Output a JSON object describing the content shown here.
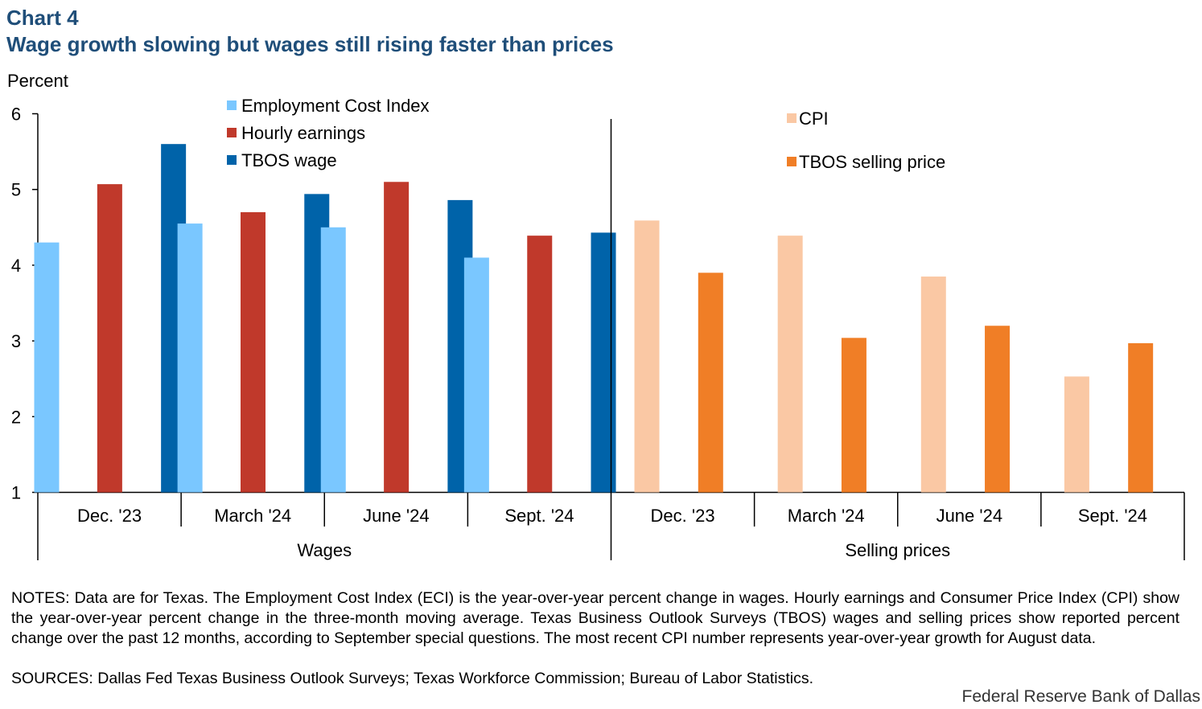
{
  "header": {
    "chart_number": "Chart 4",
    "title": "Wage growth slowing but wages still rising faster than prices"
  },
  "chart_data": {
    "type": "bar",
    "ylabel": "Percent",
    "ylim": [
      1,
      6
    ],
    "yticks": [
      1,
      2,
      3,
      4,
      5,
      6
    ],
    "groups": [
      {
        "name": "Wages",
        "categories": [
          "Dec. '23",
          "March '24",
          "June '24",
          "Sept. '24"
        ],
        "series": [
          {
            "name": "Employment Cost Index",
            "color": "#7ac7ff",
            "values": [
              4.3,
              4.55,
              4.5,
              4.1
            ]
          },
          {
            "name": "Hourly earnings",
            "color": "#c0392b",
            "values": [
              5.07,
              4.7,
              5.1,
              4.39
            ]
          },
          {
            "name": "TBOS wage",
            "color": "#0063a9",
            "values": [
              5.6,
              4.94,
              4.86,
              4.43
            ]
          }
        ]
      },
      {
        "name": "Selling prices",
        "categories": [
          "Dec. '23",
          "March '24",
          "June '24",
          "Sept. '24"
        ],
        "series": [
          {
            "name": "CPI",
            "color": "#fac8a4",
            "values": [
              4.59,
              4.39,
              3.85,
              2.53
            ]
          },
          {
            "name": "TBOS selling price",
            "color": "#f07e26",
            "values": [
              3.9,
              3.04,
              3.2,
              2.97
            ]
          }
        ]
      }
    ],
    "legend": {
      "left": [
        "Employment Cost Index",
        "Hourly earnings",
        "TBOS wage"
      ],
      "right": [
        "CPI",
        "TBOS selling price"
      ]
    }
  },
  "notes": "NOTES: Data are for Texas. The Employment Cost Index (ECI) is the year-over-year percent change in wages. Hourly earnings and Consumer Price Index (CPI) show the year-over-year percent change in the three-month moving average. Texas Business Outlook Surveys (TBOS) wages and selling prices show reported percent change over the past 12 months, according to September special questions. The most recent CPI number represents year-over-year growth for August data.",
  "sources": "SOURCES: Dallas Fed Texas Business Outlook Surveys; Texas Workforce Commission; Bureau of Labor Statistics.",
  "credit": "Federal Reserve Bank of Dallas"
}
